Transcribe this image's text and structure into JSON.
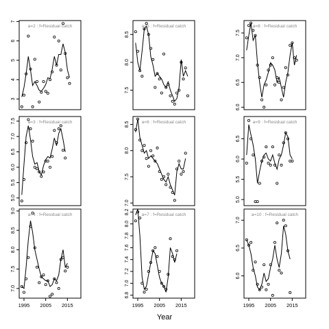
{
  "chart_data": {
    "type": "line",
    "xlabel": "Year",
    "x": [
      1994,
      1995,
      1996,
      1997,
      1998,
      1999,
      2000,
      2001,
      2002,
      2003,
      2004,
      2005,
      2006,
      2007,
      2008,
      2009,
      2010,
      2011,
      2012,
      2013,
      2014,
      2015,
      2016,
      2017,
      2018,
      2019,
      2020
    ],
    "xticks": [
      1995,
      2005,
      2015
    ],
    "xlim": [
      1992.8,
      2021.2
    ],
    "panels": [
      {
        "label": "a=2  :  f=Residual catch",
        "ylim": [
          2.45,
          7.05
        ],
        "yticks": [
          3,
          4,
          5,
          6,
          7
        ],
        "points": [
          2.6,
          3.2,
          4.3,
          6.25,
          4.55,
          2.6,
          5.05,
          3.9,
          2.85,
          3.35,
          3.9,
          3.4,
          3.3,
          4.0,
          4.4,
          6.2,
          4.75,
          6.0,
          4.5,
          6.9,
          5.35,
          4.1,
          3.8
        ],
        "line": [
          3.1,
          3.6,
          4.3,
          5.2,
          4.5,
          3.7,
          3.9,
          3.7,
          3.45,
          3.4,
          3.55,
          3.75,
          4.1,
          4.05,
          4.55,
          5.2,
          4.75,
          5.3,
          5.3,
          5.85,
          5.4,
          4.5,
          4.1
        ]
      },
      {
        "label": "a=5  :  f=Residual catch",
        "ylim": [
          7.15,
          8.75
        ],
        "yticks": [
          7.5,
          8.0,
          8.5
        ],
        "points": [
          8.55,
          8.2,
          7.85,
          7.75,
          8.6,
          8.7,
          8.5,
          8.25,
          8.05,
          7.55,
          7.8,
          7.7,
          7.45,
          8.15,
          7.55,
          7.6,
          7.4,
          7.3,
          7.25,
          7.45,
          7.5,
          8.0,
          7.7,
          7.9,
          7.4
        ],
        "line": [
          8.35,
          8.0,
          7.85,
          8.2,
          8.6,
          8.65,
          8.5,
          8.1,
          7.95,
          7.75,
          7.8,
          7.75,
          7.7,
          7.6,
          7.55,
          7.65,
          7.5,
          7.4,
          7.3,
          7.35,
          7.55,
          8.05,
          7.75,
          7.85,
          7.75
        ]
      },
      {
        "label": "a=8  :  f=Residual catch",
        "ylim": [
          5.95,
          7.75
        ],
        "yticks": [
          6.0,
          6.5,
          7.0,
          7.5
        ],
        "points": [
          7.4,
          7.65,
          7.7,
          7.55,
          7.45,
          6.85,
          6.6,
          6.15,
          6.0,
          6.45,
          6.75,
          6.85,
          7.0,
          6.45,
          6.6,
          6.5,
          6.15,
          6.4,
          6.8,
          6.65,
          7.25,
          7.3,
          7.0,
          6.95
        ],
        "line": [
          7.15,
          7.45,
          7.7,
          7.35,
          7.45,
          6.9,
          6.5,
          6.2,
          6.45,
          6.55,
          6.7,
          6.9,
          6.85,
          6.75,
          6.5,
          6.6,
          6.4,
          6.2,
          6.5,
          6.7,
          7.05,
          7.3,
          6.85,
          7.05
        ]
      },
      {
        "label": "a=3  :  f=Residual catch",
        "ylim": [
          4.75,
          7.65
        ],
        "yticks": [
          5.0,
          5.5,
          6.0,
          6.5,
          7.0,
          7.5
        ],
        "points": [
          4.9,
          5.6,
          6.8,
          7.55,
          7.25,
          6.85,
          6.0,
          5.95,
          5.85,
          5.7,
          5.85,
          6.2,
          6.2,
          6.0,
          6.35,
          7.2,
          6.8,
          7.25,
          7.35,
          6.55,
          6.3
        ],
        "line": [
          5.1,
          6.1,
          7.0,
          7.35,
          6.9,
          6.35,
          6.1,
          6.15,
          5.85,
          5.75,
          6.05,
          6.25,
          6.35,
          6.3,
          6.6,
          6.95,
          6.7,
          7.1,
          7.25,
          6.9,
          6.5
        ]
      },
      {
        "label": "a=6  :  f=Residual catch",
        "ylim": [
          6.95,
          8.65
        ],
        "yticks": [
          7.0,
          7.5,
          8.0,
          8.5
        ],
        "points": [
          8.4,
          8.6,
          8.2,
          8.0,
          8.1,
          7.85,
          7.7,
          8.0,
          7.9,
          7.8,
          8.05,
          7.6,
          7.45,
          7.5,
          7.35,
          7.55,
          7.3,
          7.2,
          7.05,
          7.65,
          7.8,
          7.55,
          7.6,
          7.95
        ],
        "line": [
          8.35,
          8.6,
          8.25,
          8.1,
          7.95,
          8.0,
          7.85,
          7.9,
          7.85,
          7.8,
          7.75,
          7.65,
          7.55,
          7.45,
          7.4,
          7.5,
          7.35,
          7.25,
          7.15,
          7.6,
          7.75,
          7.65,
          7.65,
          7.85
        ]
      },
      {
        "label": "a=9  :  f=Residual catch",
        "ylim": [
          4.85,
          7.05
        ],
        "yticks": [
          5.0,
          5.5,
          6.0,
          6.5
        ],
        "points": [
          5.9,
          6.95,
          6.5,
          6.1,
          4.95,
          4.95,
          5.4,
          5.95,
          6.05,
          6.3,
          5.9,
          5.85,
          6.3,
          5.85,
          5.4,
          6.1,
          5.85,
          6.4,
          6.65,
          6.5,
          5.95,
          5.95
        ],
        "line": [
          6.1,
          6.85,
          6.6,
          6.35,
          6.0,
          5.4,
          5.7,
          5.95,
          6.1,
          6.15,
          6.0,
          5.95,
          6.1,
          5.9,
          5.75,
          6.0,
          6.1,
          6.35,
          6.65,
          6.55,
          6.1,
          6.0
        ]
      },
      {
        "label": "a=4  :  f=Residual catch",
        "ylim": [
          6.75,
          9.05
        ],
        "yticks": [
          7.0,
          7.5,
          8.0,
          8.5,
          9.0
        ],
        "points": [
          7.05,
          6.9,
          7.25,
          7.8,
          8.6,
          8.95,
          8.05,
          7.55,
          7.15,
          7.3,
          7.35,
          7.1,
          7.2,
          6.8,
          6.85,
          7.25,
          7.15,
          7.0,
          7.75,
          7.8,
          7.45,
          7.55
        ],
        "line": [
          7.05,
          7.0,
          7.55,
          8.25,
          8.75,
          8.45,
          8.0,
          7.75,
          7.5,
          7.3,
          7.25,
          7.2,
          7.2,
          7.05,
          7.1,
          7.25,
          7.2,
          7.35,
          7.75,
          8.0,
          7.55,
          7.65
        ]
      },
      {
        "label": "a=7  :  f=Residual catch",
        "ylim": [
          6.75,
          8.25
        ],
        "yticks": [
          6.8,
          7.0,
          7.2,
          7.4,
          7.6,
          7.8,
          8.0,
          8.2
        ],
        "points": [
          8.05,
          8.2,
          8.1,
          7.0,
          6.85,
          6.9,
          7.2,
          7.35,
          7.55,
          7.6,
          7.45,
          7.2,
          7.0,
          6.95,
          6.9,
          7.15,
          7.75,
          7.45,
          7.4,
          7.55
        ],
        "line": [
          8.15,
          8.25,
          7.8,
          7.1,
          6.9,
          6.95,
          7.15,
          7.35,
          7.55,
          7.5,
          7.3,
          7.1,
          7.0,
          6.95,
          6.85,
          7.1,
          7.6,
          7.5,
          7.35,
          7.5
        ]
      },
      {
        "label": "a=10  :  f=Residual catch",
        "ylim": [
          5.6,
          7.2
        ],
        "yticks": [
          6.0,
          6.5,
          7.0
        ],
        "points": [
          6.65,
          6.55,
          6.6,
          6.1,
          6.25,
          5.85,
          5.75,
          5.8,
          6.2,
          5.75,
          5.85,
          6.2,
          5.65,
          6.6,
          6.95,
          6.1,
          6.05,
          7.0,
          6.9,
          6.45,
          5.7
        ],
        "line": [
          6.65,
          6.55,
          6.4,
          6.15,
          6.0,
          5.8,
          5.75,
          5.85,
          6.05,
          5.9,
          5.95,
          6.15,
          6.3,
          6.55,
          6.3,
          6.15,
          6.4,
          6.9,
          6.75,
          6.45,
          6.3
        ]
      }
    ]
  }
}
